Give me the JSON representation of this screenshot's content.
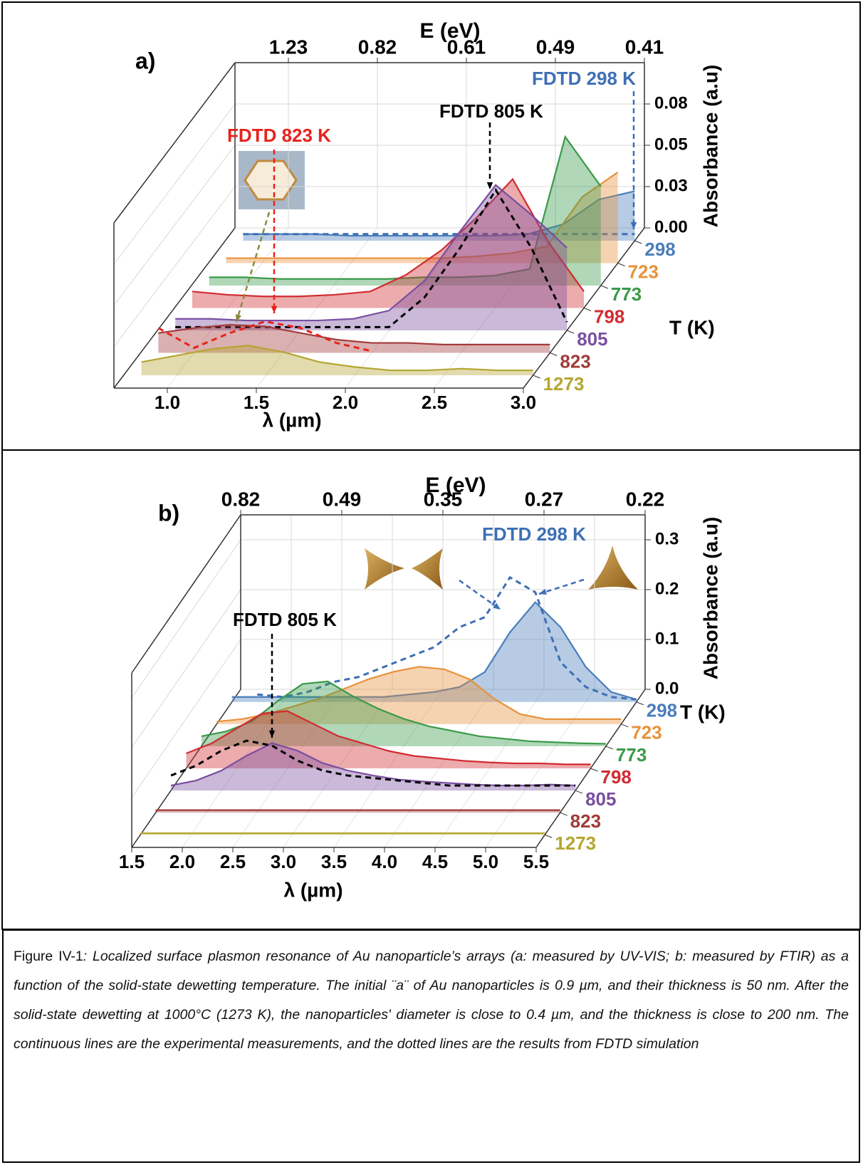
{
  "chart_data": [
    {
      "type": "waterfall",
      "panel_label": "a)",
      "x2label": "E (eV)",
      "x2ticks": [
        {
          "value": 1,
          "label": "1.23"
        },
        {
          "value": 1.5,
          "label": "0.82"
        },
        {
          "value": 2,
          "label": "0.61"
        },
        {
          "value": 2.5,
          "label": "0.49"
        },
        {
          "value": 3,
          "label": "0.41"
        }
      ],
      "xlabel": "λ (µm)",
      "xlim": [
        0.7,
        3.0
      ],
      "xticks": [
        {
          "value": 1,
          "label": "1.0"
        },
        1.5,
        {
          "value": 2,
          "label": "2.0"
        },
        2.5,
        {
          "value": 3,
          "label": "3.0"
        }
      ],
      "ylabel": "Absorbance (a.u)",
      "ylim": [
        0,
        0.1
      ],
      "yticks": [
        {
          "value": 0,
          "label": "0.00"
        },
        {
          "value": 0.025,
          "label": "0.03"
        },
        0.05,
        {
          "value": 0.075,
          "label": "0.08"
        }
      ],
      "zlabel": "T (K)",
      "x": [
        0.8,
        1.0,
        1.2,
        1.4,
        1.6,
        1.8,
        2.0,
        2.2,
        2.4,
        2.6,
        2.8,
        3.0
      ],
      "series": [
        {
          "name": "298",
          "color": "#4a7ebb",
          "values": [
            0.004,
            0.004,
            0.004,
            0.003,
            0.003,
            0.003,
            0.003,
            0.003,
            0.004,
            0.01,
            0.025,
            0.03
          ],
          "fdtd": {
            "name": "FDTD 298 K",
            "color": "#3d6fb5",
            "values": [
              0.004,
              0.004,
              0.004,
              0.004,
              0.004,
              0.004,
              0.004,
              0.004,
              0.004,
              0.004,
              0.004,
              0.004
            ]
          }
        },
        {
          "name": "723",
          "color": "#e8913a",
          "values": [
            0.003,
            0.003,
            0.003,
            0.003,
            0.003,
            0.003,
            0.003,
            0.004,
            0.006,
            0.01,
            0.04,
            0.055
          ]
        },
        {
          "name": "773",
          "color": "#3a9a4a",
          "values": [
            0.005,
            0.005,
            0.004,
            0.004,
            0.004,
            0.004,
            0.005,
            0.005,
            0.006,
            0.01,
            0.09,
            0.06
          ]
        },
        {
          "name": "798",
          "color": "#d02c32",
          "values": [
            0.01,
            0.008,
            0.007,
            0.007,
            0.008,
            0.01,
            0.02,
            0.035,
            0.055,
            0.078,
            0.04,
            0.01
          ]
        },
        {
          "name": "805",
          "color": "#7a4fa0",
          "values": [
            0.007,
            0.007,
            0.006,
            0.006,
            0.006,
            0.007,
            0.012,
            0.03,
            0.06,
            0.088,
            0.07,
            0.05
          ],
          "fdtd": {
            "name": "FDTD 805 K",
            "color": "#000000",
            "values": [
              0.002,
              0.002,
              0.002,
              0.002,
              0.002,
              0.002,
              0.002,
              0.02,
              0.05,
              0.085,
              0.05,
              0.005
            ]
          }
        },
        {
          "name": "823",
          "color": "#a33a3a",
          "values": [
            0.012,
            0.015,
            0.017,
            0.016,
            0.012,
            0.008,
            0.006,
            0.006,
            0.005,
            0.005,
            0.005,
            0.005
          ],
          "fdtd": {
            "name": "FDTD 823 K",
            "color": "#e8221c",
            "values": [
              0.015,
              0.003,
              0.012,
              0.019,
              0.015,
              0.006,
              0.001,
              null,
              null,
              null,
              null,
              null
            ]
          }
        },
        {
          "name": "1273",
          "color": "#b5a632",
          "values": [
            0.008,
            0.012,
            0.016,
            0.018,
            0.014,
            0.008,
            0.005,
            0.003,
            0.003,
            0.004,
            0.003,
            0.003
          ]
        }
      ]
    },
    {
      "type": "waterfall",
      "panel_label": "b)",
      "x2label": "E (eV)",
      "x2ticks": [
        {
          "value": 1.5,
          "label": "0.82"
        },
        {
          "value": 2.5,
          "label": "0.49"
        },
        {
          "value": 3.5,
          "label": "0.35"
        },
        {
          "value": 4.5,
          "label": "0.27"
        },
        {
          "value": 5.5,
          "label": "0.22"
        }
      ],
      "xlabel": "λ (µm)",
      "xlim": [
        1.5,
        5.5
      ],
      "xticks": [
        1.5,
        {
          "value": 2,
          "label": "2.0"
        },
        2.5,
        {
          "value": 3,
          "label": "3.0"
        },
        3.5,
        {
          "value": 4,
          "label": "4.0"
        },
        4.5,
        {
          "value": 5,
          "label": "5.0"
        },
        5.5
      ],
      "ylabel": "Absorbance (a.u)",
      "ylim": [
        0,
        0.35
      ],
      "yticks": [
        {
          "value": 0,
          "label": "0.0"
        },
        0.1,
        0.2,
        0.3
      ],
      "zlabel": "T (K)",
      "x": [
        1.5,
        1.75,
        2.0,
        2.25,
        2.5,
        2.75,
        3.0,
        3.25,
        3.5,
        3.75,
        4.0,
        4.25,
        4.5,
        4.75,
        5.0,
        5.25,
        5.5
      ],
      "series": [
        {
          "name": "298",
          "color": "#4a7ebb",
          "values": [
            0.01,
            0.01,
            0.01,
            0.01,
            0.01,
            0.01,
            0.01,
            0.015,
            0.02,
            0.03,
            0.06,
            0.14,
            0.2,
            0.15,
            0.07,
            0.02,
            0.005
          ],
          "fdtd": {
            "name": "FDTD 298 K",
            "color": "#3d6fb5",
            "values": [
              null,
              0.015,
              0.01,
              0.02,
              0.04,
              0.05,
              0.07,
              0.09,
              0.11,
              0.15,
              0.17,
              0.25,
              0.22,
              0.08,
              0.03,
              0.01,
              0.005
            ]
          }
        },
        {
          "name": "723",
          "color": "#e8913a",
          "values": [
            0.005,
            0.01,
            0.02,
            0.035,
            0.05,
            0.07,
            0.09,
            0.105,
            0.115,
            0.11,
            0.09,
            0.05,
            0.02,
            0.01,
            0.01,
            0.01,
            0.01
          ]
        },
        {
          "name": "773",
          "color": "#3a9a4a",
          "values": [
            0.02,
            0.03,
            0.05,
            0.09,
            0.125,
            0.13,
            0.1,
            0.075,
            0.055,
            0.04,
            0.03,
            0.02,
            0.015,
            0.01,
            0.008,
            0.006,
            0.005
          ]
        },
        {
          "name": "798",
          "color": "#d02c32",
          "values": [
            0.03,
            0.05,
            0.08,
            0.11,
            0.115,
            0.09,
            0.065,
            0.05,
            0.035,
            0.025,
            0.02,
            0.015,
            0.012,
            0.01,
            0.01,
            0.008,
            0.008
          ]
        },
        {
          "name": "805",
          "color": "#7a4fa0",
          "values": [
            0.01,
            0.02,
            0.04,
            0.07,
            0.095,
            0.08,
            0.055,
            0.04,
            0.03,
            0.022,
            0.018,
            0.015,
            0.012,
            0.01,
            0.01,
            0.012,
            0.01
          ],
          "fdtd": {
            "name": "FDTD 805 K",
            "color": "#000000",
            "values": [
              0.03,
              0.05,
              0.08,
              0.1,
              0.09,
              0.06,
              0.04,
              0.03,
              0.025,
              0.02,
              0.015,
              0.01,
              0.01,
              0.01,
              0.01,
              0.01,
              0.01
            ]
          }
        },
        {
          "name": "823",
          "color": "#a33a3a",
          "values": [
            0.005,
            0.005,
            0.005,
            0.005,
            0.005,
            0.005,
            0.005,
            0.005,
            0.005,
            0.005,
            0.005,
            0.005,
            0.005,
            0.005,
            0.005,
            0.005,
            0.005
          ]
        },
        {
          "name": "1273",
          "color": "#b5a632",
          "values": [
            0.003,
            0.003,
            0.003,
            0.003,
            0.003,
            0.003,
            0.003,
            0.003,
            0.003,
            0.003,
            0.003,
            0.003,
            0.003,
            0.003,
            0.003,
            0.003,
            0.003
          ]
        }
      ]
    }
  ],
  "caption": {
    "label": "Figure IV-1",
    "text": ": Localized surface plasmon resonance of Au nanoparticle’s arrays (a: measured by UV-VIS; b: measured by FTIR) as a function of the solid-state dewetting temperature. The initial ¨a¨ of Au nanoparticles is 0.9 µm, and their thickness is 50 nm. After the solid-state dewetting at 1000°C (1273 K), the nanoparticles' diameter is close to 0.4 µm, and the thickness is close to 200 nm. The continuous lines are the experimental measurements, and the dotted lines are the results from FDTD simulation"
  }
}
